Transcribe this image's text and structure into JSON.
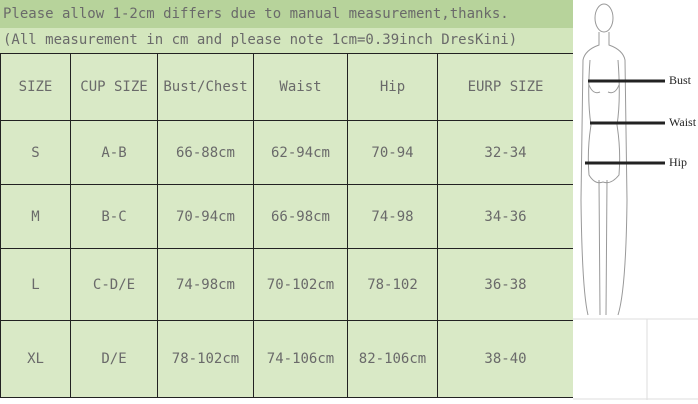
{
  "notes": {
    "line1": "Please allow 1-2cm differs due to manual measurement,thanks.",
    "line2": "(All measurement in cm and please note 1cm=0.39inch DresKini)"
  },
  "table": {
    "headers": [
      "SIZE",
      "CUP SIZE",
      "Bust/Chest",
      "Waist",
      "Hip",
      "EURP SIZE"
    ],
    "rows": [
      [
        "S",
        "A-B",
        "66-88cm",
        "62-94cm",
        "70-94",
        "32-34"
      ],
      [
        "M",
        "B-C",
        "70-94cm",
        "66-98cm",
        "74-98",
        "34-36"
      ],
      [
        "L",
        "C-D/E",
        "74-98cm",
        "70-102cm",
        "78-102",
        "36-38"
      ],
      [
        "XL",
        "D/E",
        "78-102cm",
        "74-106cm",
        "82-106cm",
        "38-40"
      ]
    ]
  },
  "figure": {
    "labels": [
      "Bust",
      "Waist",
      "Hip"
    ]
  },
  "colors": {
    "title_bg": "#b7d39b",
    "subtitle_bg": "#d3e6bd",
    "cell_bg": "#d9e9c6",
    "text": "#6a6a6a"
  }
}
